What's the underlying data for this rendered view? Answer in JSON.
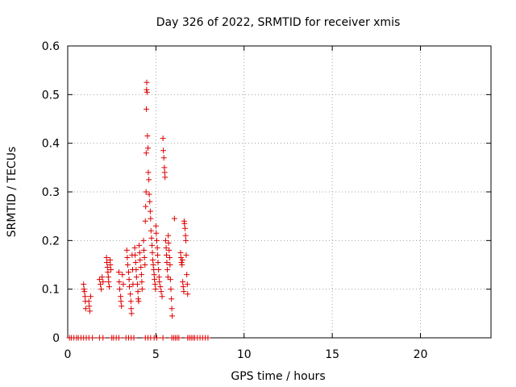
{
  "chart_data": {
    "type": "scatter",
    "title": "Day 326 of 2022, SRMTID for receiver xmis",
    "xlabel": "GPS time / hours",
    "ylabel": "SRMTID / TECUs",
    "xlim": [
      0,
      24
    ],
    "ylim": [
      0,
      0.6
    ],
    "xticks": [
      0,
      5,
      10,
      15,
      20
    ],
    "yticks": [
      0,
      0.1,
      0.2,
      0.3,
      0.4,
      0.5,
      0.6
    ],
    "xtick_labels": [
      "0",
      "5",
      "10",
      "15",
      "20"
    ],
    "ytick_labels": [
      "0",
      "0.1",
      "0.2",
      "0.3",
      "0.4",
      "0.5",
      "0.6"
    ],
    "grid": true,
    "marker": "+",
    "series": [
      {
        "name": "SRMTID",
        "color": "#dd0000",
        "points": [
          [
            0.1,
            0
          ],
          [
            0.2,
            0
          ],
          [
            0.35,
            0
          ],
          [
            0.5,
            0
          ],
          [
            0.6,
            0
          ],
          [
            0.75,
            0
          ],
          [
            0.9,
            0
          ],
          [
            1.05,
            0
          ],
          [
            1.2,
            0
          ],
          [
            1.4,
            0
          ],
          [
            1.8,
            0
          ],
          [
            2.0,
            0
          ],
          [
            2.5,
            0
          ],
          [
            2.6,
            0
          ],
          [
            2.75,
            0
          ],
          [
            2.9,
            0
          ],
          [
            3.3,
            0
          ],
          [
            3.45,
            0
          ],
          [
            3.6,
            0
          ],
          [
            3.75,
            0
          ],
          [
            4.4,
            0
          ],
          [
            4.55,
            0
          ],
          [
            4.7,
            0
          ],
          [
            4.9,
            0
          ],
          [
            5.05,
            0
          ],
          [
            5.4,
            0
          ],
          [
            5.9,
            0
          ],
          [
            6.0,
            0
          ],
          [
            6.1,
            0
          ],
          [
            6.2,
            0
          ],
          [
            6.3,
            0
          ],
          [
            6.8,
            0
          ],
          [
            6.9,
            0
          ],
          [
            7.0,
            0
          ],
          [
            7.1,
            0
          ],
          [
            7.2,
            0
          ],
          [
            7.35,
            0
          ],
          [
            7.5,
            0
          ],
          [
            7.65,
            0
          ],
          [
            7.8,
            0
          ],
          [
            7.95,
            0
          ],
          [
            0.9,
            0.11
          ],
          [
            0.92,
            0.1
          ],
          [
            0.95,
            0.095
          ],
          [
            0.98,
            0.085
          ],
          [
            1.0,
            0.075
          ],
          [
            1.02,
            0.06
          ],
          [
            1.2,
            0.075
          ],
          [
            1.22,
            0.065
          ],
          [
            1.25,
            0.055
          ],
          [
            1.3,
            0.085
          ],
          [
            1.8,
            0.12
          ],
          [
            1.85,
            0.11
          ],
          [
            1.9,
            0.1
          ],
          [
            1.95,
            0.125
          ],
          [
            2.0,
            0.115
          ],
          [
            2.2,
            0.165
          ],
          [
            2.22,
            0.155
          ],
          [
            2.25,
            0.145
          ],
          [
            2.28,
            0.135
          ],
          [
            2.3,
            0.125
          ],
          [
            2.32,
            0.115
          ],
          [
            2.35,
            0.105
          ],
          [
            2.4,
            0.16
          ],
          [
            2.42,
            0.15
          ],
          [
            2.45,
            0.14
          ],
          [
            2.9,
            0.135
          ],
          [
            2.92,
            0.115
          ],
          [
            2.95,
            0.1
          ],
          [
            3.0,
            0.085
          ],
          [
            3.02,
            0.075
          ],
          [
            3.05,
            0.065
          ],
          [
            3.1,
            0.13
          ],
          [
            3.15,
            0.11
          ],
          [
            3.35,
            0.18
          ],
          [
            3.38,
            0.165
          ],
          [
            3.4,
            0.15
          ],
          [
            3.45,
            0.135
          ],
          [
            3.48,
            0.12
          ],
          [
            3.5,
            0.105
          ],
          [
            3.55,
            0.09
          ],
          [
            3.58,
            0.075
          ],
          [
            3.6,
            0.06
          ],
          [
            3.62,
            0.05
          ],
          [
            3.65,
            0.17
          ],
          [
            3.68,
            0.14
          ],
          [
            3.7,
            0.11
          ],
          [
            3.8,
            0.185
          ],
          [
            3.82,
            0.17
          ],
          [
            3.85,
            0.155
          ],
          [
            3.88,
            0.14
          ],
          [
            3.9,
            0.125
          ],
          [
            3.95,
            0.11
          ],
          [
            3.98,
            0.095
          ],
          [
            4.0,
            0.08
          ],
          [
            4.02,
            0.075
          ],
          [
            4.05,
            0.19
          ],
          [
            4.08,
            0.175
          ],
          [
            4.1,
            0.16
          ],
          [
            4.15,
            0.145
          ],
          [
            4.18,
            0.13
          ],
          [
            4.2,
            0.115
          ],
          [
            4.22,
            0.1
          ],
          [
            4.3,
            0.2
          ],
          [
            4.32,
            0.18
          ],
          [
            4.35,
            0.165
          ],
          [
            4.38,
            0.15
          ],
          [
            4.4,
            0.24
          ],
          [
            4.42,
            0.27
          ],
          [
            4.44,
            0.3
          ],
          [
            4.45,
            0.38
          ],
          [
            4.46,
            0.47
          ],
          [
            4.47,
            0.51
          ],
          [
            4.48,
            0.525
          ],
          [
            4.5,
            0.505
          ],
          [
            4.52,
            0.415
          ],
          [
            4.55,
            0.39
          ],
          [
            4.57,
            0.34
          ],
          [
            4.6,
            0.325
          ],
          [
            4.62,
            0.295
          ],
          [
            4.65,
            0.28
          ],
          [
            4.68,
            0.26
          ],
          [
            4.7,
            0.245
          ],
          [
            4.72,
            0.22
          ],
          [
            4.75,
            0.205
          ],
          [
            4.78,
            0.19
          ],
          [
            4.8,
            0.175
          ],
          [
            4.82,
            0.16
          ],
          [
            4.85,
            0.15
          ],
          [
            4.88,
            0.14
          ],
          [
            4.9,
            0.13
          ],
          [
            4.92,
            0.12
          ],
          [
            4.95,
            0.11
          ],
          [
            4.98,
            0.1
          ],
          [
            5.0,
            0.23
          ],
          [
            5.02,
            0.215
          ],
          [
            5.05,
            0.2
          ],
          [
            5.08,
            0.185
          ],
          [
            5.1,
            0.17
          ],
          [
            5.12,
            0.155
          ],
          [
            5.15,
            0.14
          ],
          [
            5.18,
            0.125
          ],
          [
            5.2,
            0.115
          ],
          [
            5.25,
            0.105
          ],
          [
            5.3,
            0.095
          ],
          [
            5.35,
            0.085
          ],
          [
            5.4,
            0.41
          ],
          [
            5.42,
            0.385
          ],
          [
            5.45,
            0.37
          ],
          [
            5.48,
            0.35
          ],
          [
            5.5,
            0.34
          ],
          [
            5.52,
            0.33
          ],
          [
            5.55,
            0.2
          ],
          [
            5.58,
            0.185
          ],
          [
            5.6,
            0.17
          ],
          [
            5.62,
            0.155
          ],
          [
            5.65,
            0.14
          ],
          [
            5.68,
            0.125
          ],
          [
            5.7,
            0.21
          ],
          [
            5.72,
            0.195
          ],
          [
            5.75,
            0.18
          ],
          [
            5.78,
            0.165
          ],
          [
            5.8,
            0.15
          ],
          [
            5.82,
            0.12
          ],
          [
            5.85,
            0.1
          ],
          [
            5.88,
            0.08
          ],
          [
            5.9,
            0.06
          ],
          [
            5.92,
            0.045
          ],
          [
            6.05,
            0.245
          ],
          [
            6.4,
            0.175
          ],
          [
            6.42,
            0.165
          ],
          [
            6.45,
            0.155
          ],
          [
            6.48,
            0.15
          ],
          [
            6.5,
            0.16
          ],
          [
            6.52,
            0.115
          ],
          [
            6.55,
            0.105
          ],
          [
            6.58,
            0.095
          ],
          [
            6.6,
            0.24
          ],
          [
            6.62,
            0.235
          ],
          [
            6.65,
            0.225
          ],
          [
            6.68,
            0.21
          ],
          [
            6.7,
            0.2
          ],
          [
            6.72,
            0.17
          ],
          [
            6.75,
            0.13
          ],
          [
            6.78,
            0.11
          ],
          [
            6.8,
            0.09
          ]
        ]
      }
    ]
  }
}
